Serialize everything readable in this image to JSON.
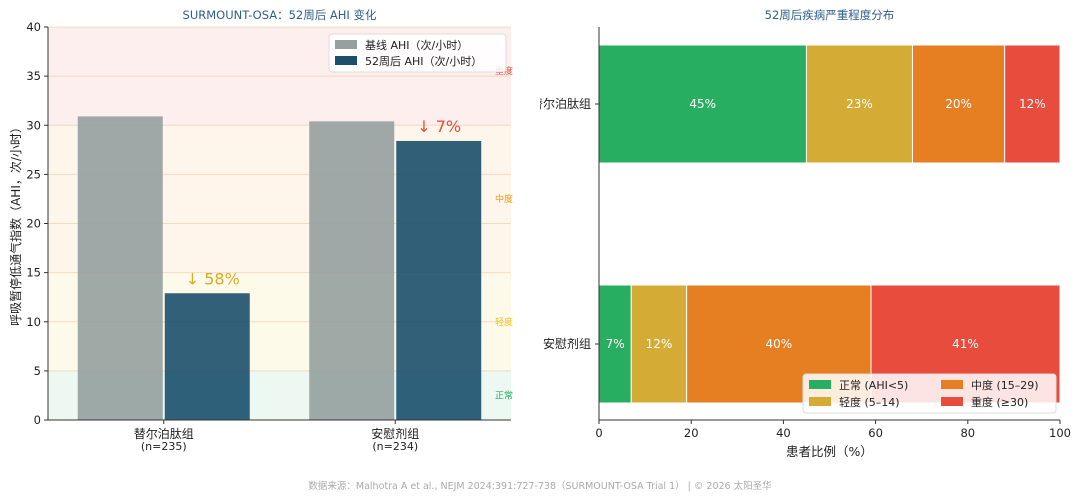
{
  "chart_data": [
    {
      "type": "bar",
      "title": "SURMOUNT-OSA：52周后 AHI 变化",
      "ylabel": "呼吸暂停低通气指数（AHI，次/小时）",
      "ylim": [
        0,
        40
      ],
      "yticks": [
        0,
        5,
        10,
        15,
        20,
        25,
        30,
        35,
        40
      ],
      "categories": [
        "替尔泊肽组\n(n=235)",
        "安慰剂组\n(n=234)"
      ],
      "series": [
        {
          "name": "基线 AHI（次/小时）",
          "values": [
            30.9,
            30.4
          ],
          "color": "#95a09f"
        },
        {
          "name": "52周后 AHI（次/小时）",
          "values": [
            12.9,
            28.4
          ],
          "color": "#1b4f6b"
        }
      ],
      "reduction_labels": [
        {
          "text": "↓ 58%",
          "color": "#d4ac2b"
        },
        {
          "text": "↓ 7%",
          "color": "#e74c3c"
        }
      ],
      "severity_bands": [
        {
          "label": "正常",
          "from": 0,
          "to": 5,
          "color": "#27ae60"
        },
        {
          "label": "轻度",
          "from": 5,
          "to": 15,
          "color": "#f1c40f"
        },
        {
          "label": "中度",
          "from": 15,
          "to": 30,
          "color": "#f39c12"
        },
        {
          "label": "重度",
          "from": 30,
          "to": 40,
          "color": "#e74c3c"
        }
      ],
      "legend": "top-right",
      "grid": true
    },
    {
      "type": "bar",
      "orientation": "horizontal-stacked",
      "title": "52周后疾病严重程度分布",
      "xlabel": "患者比例（%）",
      "xlim": [
        0,
        100
      ],
      "xticks": [
        0,
        20,
        40,
        60,
        80,
        100
      ],
      "categories": [
        "替尔泊肽组",
        "安慰剂组"
      ],
      "series": [
        {
          "name": "正常 (AHI<5)",
          "values": [
            45,
            7
          ],
          "color": "#27ae60"
        },
        {
          "name": "轻度 (5–14)",
          "values": [
            23,
            12
          ],
          "color": "#d4ac35"
        },
        {
          "name": "中度 (15–29)",
          "values": [
            20,
            40
          ],
          "color": "#e67e22"
        },
        {
          "name": "重度 (≥30)",
          "values": [
            12,
            41
          ],
          "color": "#e74c3c"
        }
      ],
      "data_labels": [
        [
          "45%",
          "23%",
          "20%",
          "12%"
        ],
        [
          "7%",
          "12%",
          "40%",
          "41%"
        ]
      ],
      "legend": "bottom-right"
    }
  ],
  "footer": "数据来源：Malhotra A et al., NEJM 2024;391:727-738（SURMOUNT-OSA Trial 1） | © 2026 太阳圣华",
  "colors": {
    "title": "#2c5f8a",
    "axis": "#333333"
  }
}
